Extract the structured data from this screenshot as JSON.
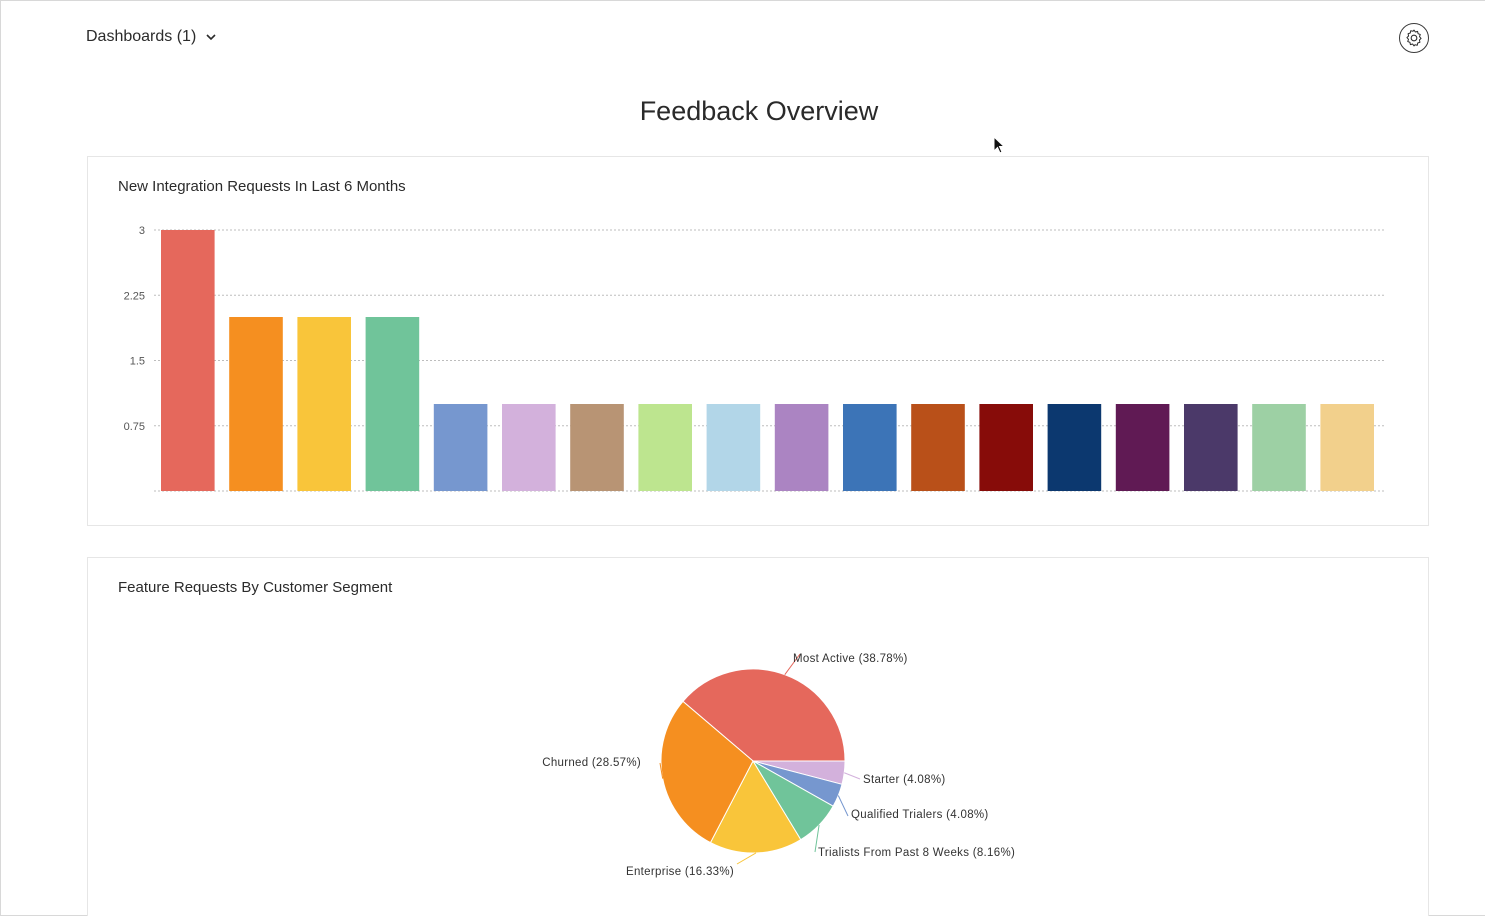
{
  "header": {
    "dashboard_selector_label": "Dashboards (1)",
    "page_title": "Feedback Overview"
  },
  "bar_card": {
    "title": "New Integration Requests In Last 6 Months"
  },
  "pie_card": {
    "title": "Feature Requests By Customer Segment"
  },
  "chart_data": [
    {
      "type": "bar",
      "title": "New Integration Requests In Last 6 Months",
      "ylim": [
        0,
        3
      ],
      "yticks": [
        "0.75",
        "1.5",
        "2.25",
        "3"
      ],
      "ytick_values": [
        0.75,
        1.5,
        2.25,
        3
      ],
      "grid": true,
      "values": [
        3,
        2,
        2,
        2,
        1,
        1,
        1,
        1,
        1,
        1,
        1,
        1,
        1,
        1,
        1,
        1,
        1,
        1
      ],
      "colors": [
        "#e5685c",
        "#f58f20",
        "#f9c53a",
        "#70c49a",
        "#7697cf",
        "#d3b1dc",
        "#b89474",
        "#bde58f",
        "#b2d6e8",
        "#ab84c2",
        "#3c74b7",
        "#b95019",
        "#870c09",
        "#0c386f",
        "#601a54",
        "#4b3969",
        "#9dd0a4",
        "#f2d08c"
      ]
    },
    {
      "type": "pie",
      "title": "Feature Requests By Customer Segment",
      "slices": [
        {
          "label": "Most Active (38.78%)",
          "value": 38.78,
          "color": "#e5685c"
        },
        {
          "label": "Starter (4.08%)",
          "value": 4.08,
          "color": "#d3b1dc"
        },
        {
          "label": "Qualified Trialers (4.08%)",
          "value": 4.08,
          "color": "#7697cf"
        },
        {
          "label": "Trialists From Past 8 Weeks (8.16%)",
          "value": 8.16,
          "color": "#70c49a"
        },
        {
          "label": "Enterprise (16.33%)",
          "value": 16.33,
          "color": "#f9c53a"
        },
        {
          "label": "Churned (28.57%)",
          "value": 28.57,
          "color": "#f58f20"
        }
      ]
    }
  ]
}
